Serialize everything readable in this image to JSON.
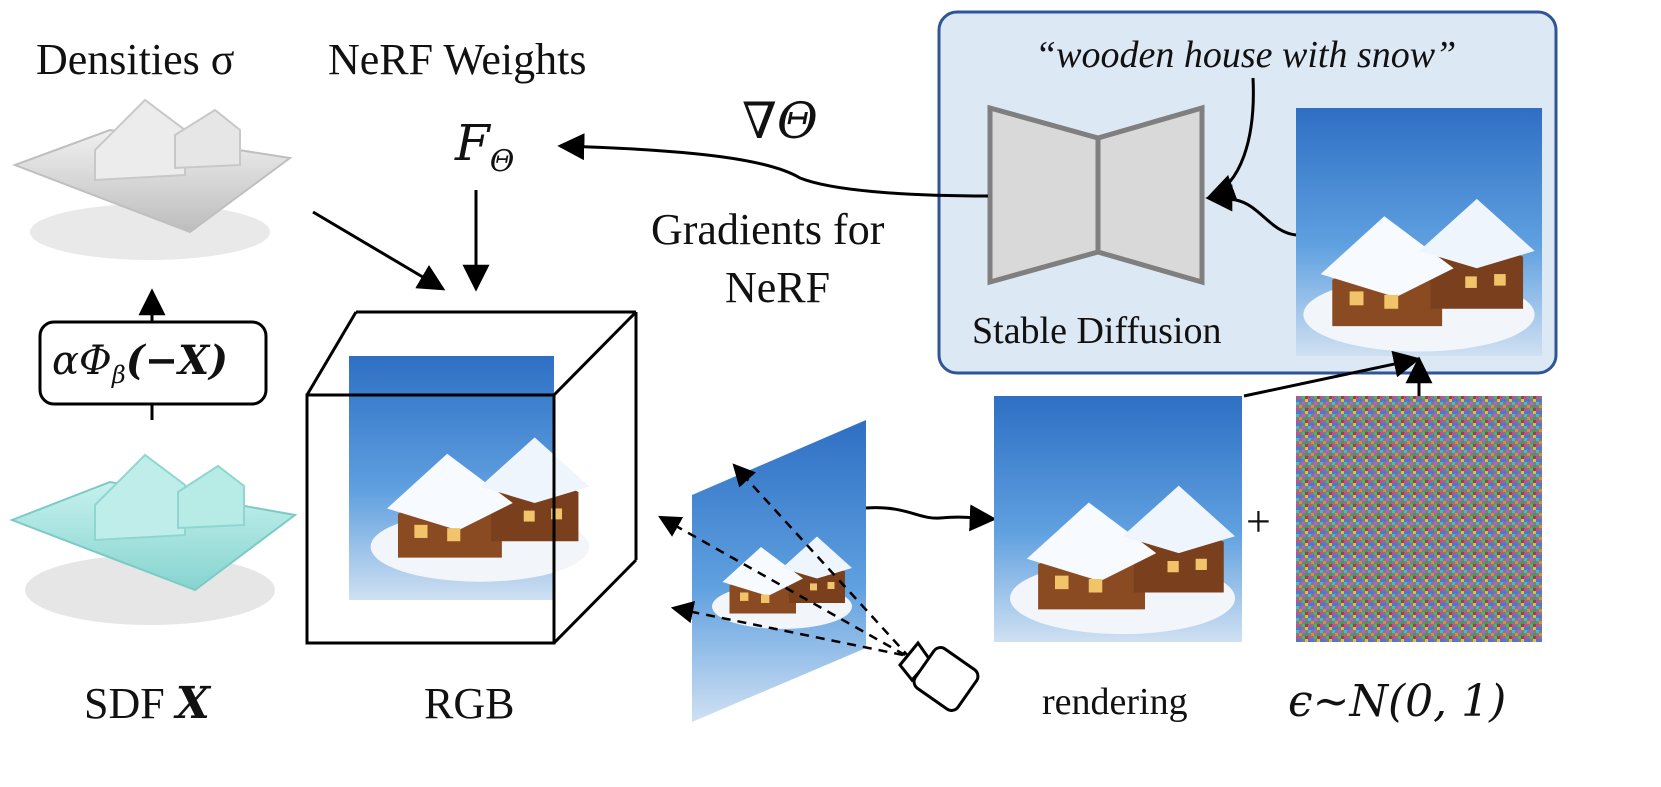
{
  "labels": {
    "densities": "Densities σ",
    "nerf_weights": "NeRF Weights",
    "f_theta": "F",
    "f_theta_sub": "Θ",
    "grad_theta": "∇Θ",
    "gradients_line1": "Gradients for",
    "gradients_line2": "NeRF",
    "prompt": "“wooden house with snow”",
    "stable_diffusion": "Stable Diffusion",
    "alpha_phi": "αΦ",
    "alpha_phi_sub": "β",
    "alpha_phi_arg": "(−X)",
    "sdf": "SDF ",
    "sdf_x": "X",
    "rgb": "RGB",
    "rendering": "rendering",
    "plus": "+",
    "noise": "ϵ∼N(0, 1)"
  },
  "colors": {
    "panel_fill": "#dde8f5",
    "panel_stroke": "#2f5597",
    "unet_fill": "#d9d9d9",
    "unet_stroke": "#7f7f7f",
    "sky": "#3f86d6",
    "snow": "#f4f8fc",
    "wood": "#8a4b22",
    "gray_mesh": "#cfcfcf",
    "teal_mesh": "#9fe0dc"
  },
  "icons": [
    "camera-icon"
  ]
}
